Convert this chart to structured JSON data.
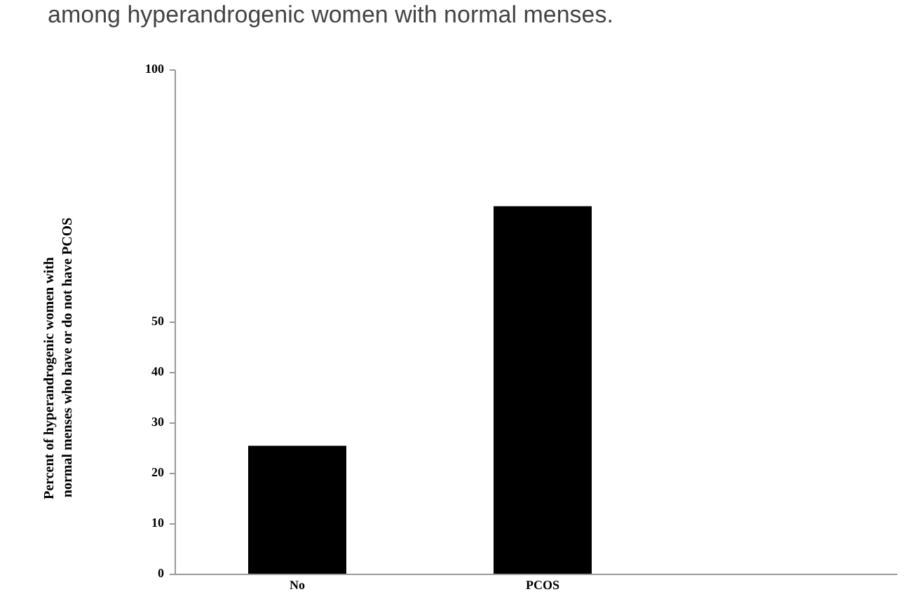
{
  "chart_data": {
    "type": "bar",
    "title": "among hyperandrogenic women with normal menses.",
    "ylabel": "Percent of hyperandrogenic women with normal menses who have or do not have PCOS",
    "categories": [
      "No",
      "PCOS"
    ],
    "values": [
      25.5,
      73
    ],
    "color": "#000000",
    "ylim": [
      0,
      100
    ],
    "yticks": [
      0,
      10,
      20,
      30,
      40,
      50,
      100
    ],
    "grid": false
  }
}
